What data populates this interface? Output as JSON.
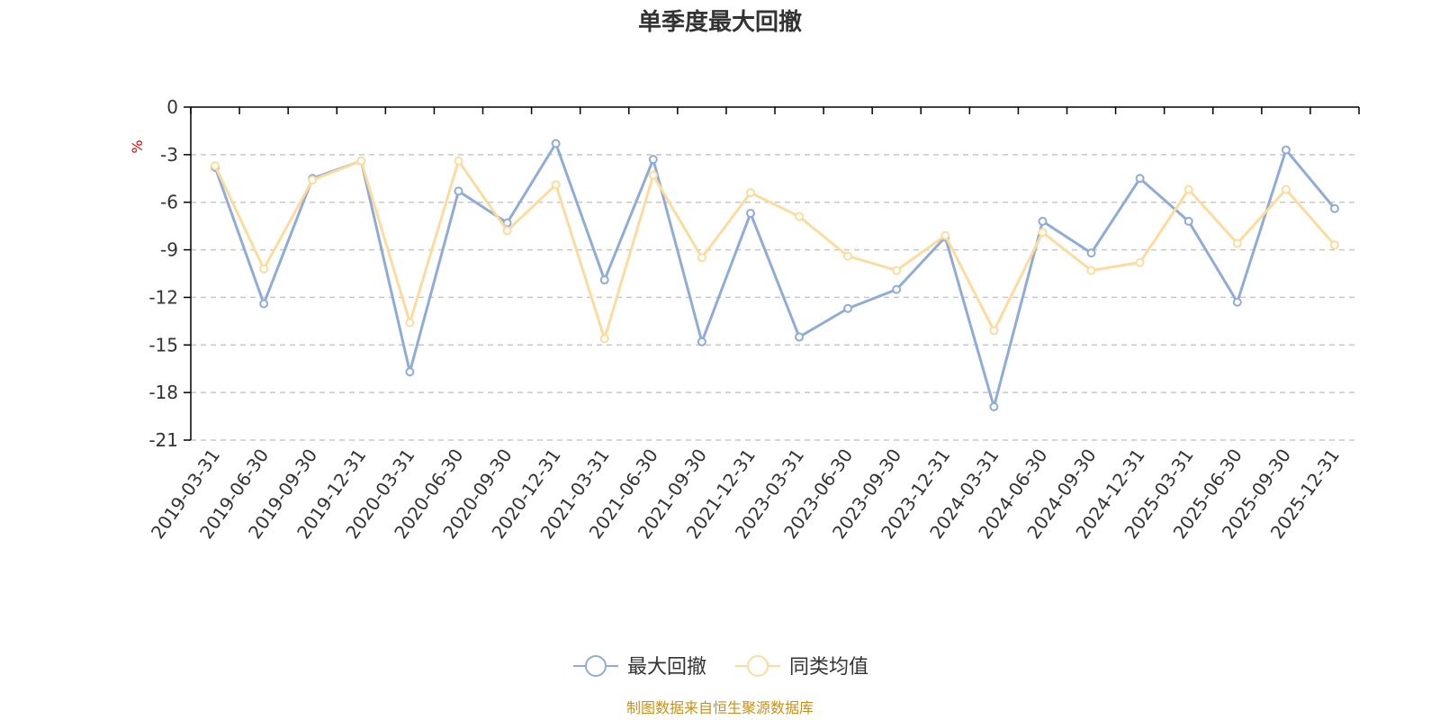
{
  "chart_data": {
    "type": "line",
    "title": "单季度最大回撤",
    "ylabel": "%",
    "ylim": [
      -21,
      0
    ],
    "yticks": [
      0,
      -3,
      -6,
      -9,
      -12,
      -15,
      -18,
      -21
    ],
    "ytick_labels": [
      "0",
      "-3",
      "-6",
      "-9",
      "-12",
      "-15",
      "-18",
      "-21"
    ],
    "grid": true,
    "legend_position": "bottom",
    "categories": [
      "2019-03-31",
      "2019-06-30",
      "2019-09-30",
      "2019-12-31",
      "2020-03-31",
      "2020-06-30",
      "2020-09-30",
      "2020-12-31",
      "2021-03-31",
      "2021-06-30",
      "2021-09-30",
      "2021-12-31",
      "2023-03-31",
      "2023-06-30",
      "2023-09-30",
      "2023-12-31",
      "2024-03-31",
      "2024-06-30",
      "2024-09-30",
      "2024-12-31",
      "2025-03-31",
      "2025-06-30",
      "2025-09-30",
      "2025-12-31"
    ],
    "series": [
      {
        "name": "最大回撤",
        "color": "#8eacd6",
        "values": [
          -3.8,
          -12.4,
          -4.5,
          -3.4,
          -16.7,
          -5.3,
          -7.3,
          -2.3,
          -10.9,
          -3.3,
          -14.8,
          -6.7,
          -14.5,
          -12.7,
          -11.5,
          -8.2,
          -18.9,
          -7.2,
          -9.2,
          -4.5,
          -7.2,
          -12.3,
          -2.7,
          -6.4
        ]
      },
      {
        "name": "同类均值",
        "color": "#fcdc9e",
        "values": [
          -3.7,
          -10.2,
          -4.6,
          -3.4,
          -13.6,
          -3.4,
          -7.8,
          -4.9,
          -14.6,
          -4.3,
          -9.5,
          -5.4,
          -6.9,
          -9.4,
          -10.3,
          -8.1,
          -14.1,
          -7.9,
          -10.3,
          -9.8,
          -5.2,
          -8.6,
          -5.2,
          -8.7
        ]
      }
    ],
    "source": "制图数据来自恒生聚源数据库",
    "axis_color": "#000000",
    "grid_color": "#c8c8c8",
    "unit_color": "#e60000",
    "source_color": "#c8901a"
  }
}
